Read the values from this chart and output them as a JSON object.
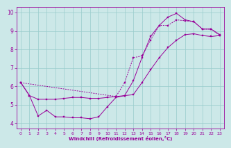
{
  "xlabel": "Windchill (Refroidissement éolien,°C)",
  "bg_color": "#cce8e8",
  "line_color": "#990099",
  "grid_color": "#99cccc",
  "xlim": [
    -0.5,
    23.5
  ],
  "ylim": [
    3.7,
    10.3
  ],
  "xticks": [
    0,
    1,
    2,
    3,
    4,
    5,
    6,
    7,
    8,
    9,
    10,
    11,
    12,
    13,
    14,
    15,
    16,
    17,
    18,
    19,
    20,
    21,
    22,
    23
  ],
  "yticks": [
    4,
    5,
    6,
    7,
    8,
    9,
    10
  ],
  "curve_a_x": [
    0,
    1,
    2,
    3,
    4,
    5,
    6,
    7,
    8,
    9,
    10,
    11,
    12,
    13,
    14,
    15,
    16,
    17,
    18,
    19,
    20,
    21,
    22,
    23
  ],
  "curve_a_y": [
    6.2,
    5.5,
    4.4,
    4.7,
    4.35,
    4.35,
    4.3,
    4.3,
    4.25,
    4.35,
    4.9,
    5.4,
    5.5,
    6.3,
    7.55,
    8.7,
    9.3,
    9.75,
    9.95,
    9.6,
    9.5,
    9.1,
    9.1,
    8.8
  ],
  "curve_b_x": [
    0,
    1,
    2,
    3,
    4,
    5,
    6,
    7,
    8,
    9,
    10,
    11,
    12,
    13,
    14,
    15,
    16,
    17,
    18,
    19,
    20,
    21,
    22,
    23
  ],
  "curve_b_y": [
    6.2,
    5.5,
    5.3,
    5.3,
    5.3,
    5.35,
    5.4,
    5.4,
    5.35,
    5.35,
    5.4,
    5.45,
    5.5,
    5.55,
    6.2,
    6.9,
    7.55,
    8.1,
    8.5,
    8.8,
    8.85,
    8.75,
    8.7,
    8.75
  ],
  "curve_c_x": [
    0,
    11,
    12,
    13,
    14,
    15,
    16,
    17,
    18,
    19,
    20,
    21,
    22,
    23
  ],
  "curve_c_y": [
    6.2,
    5.45,
    6.2,
    7.55,
    7.65,
    8.5,
    9.3,
    9.3,
    9.6,
    9.55,
    9.5,
    9.1,
    9.1,
    8.75
  ]
}
